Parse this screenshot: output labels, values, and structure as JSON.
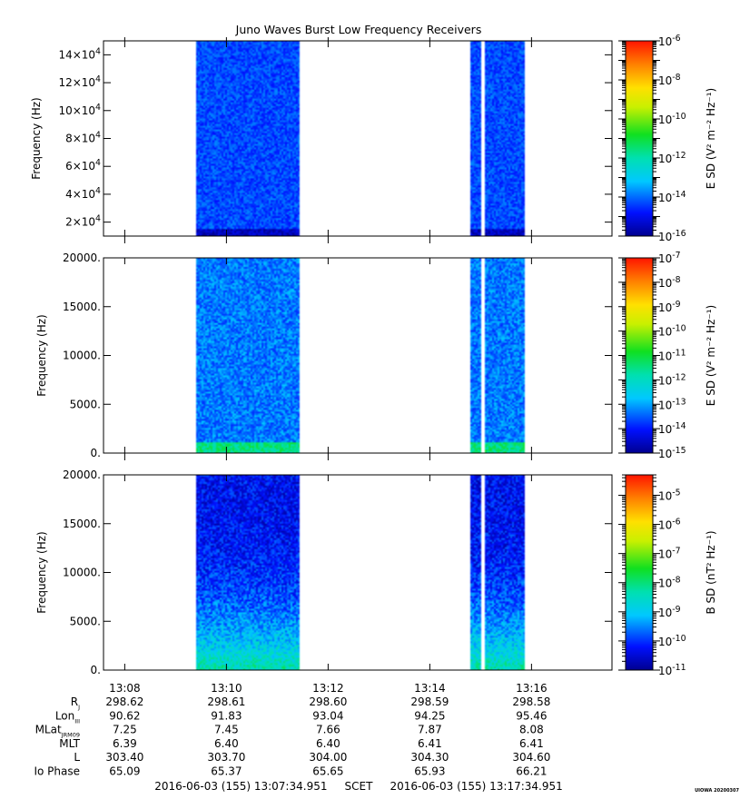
{
  "chart_data": {
    "type": "heatmap",
    "title": "Juno Waves Burst Low Frequency Receivers",
    "x_tick_labels": [
      "13:08",
      "13:10",
      "13:12",
      "13:14",
      "13:16"
    ],
    "time_range": [
      "13:07:34.951",
      "13:17:34.951"
    ],
    "data_intervals": [
      [
        "13:09:24",
        "13:11:27"
      ],
      [
        "13:14:48",
        "13:15:01"
      ],
      [
        "13:15:05",
        "13:15:53"
      ]
    ],
    "panels": [
      {
        "ylabel": "Frequency (Hz)",
        "ylim": [
          10000,
          150000
        ],
        "yticks": [
          20000,
          40000,
          60000,
          80000,
          100000,
          120000,
          140000
        ],
        "ytick_labels": [
          {
            "base": "2×10",
            "exp": "4"
          },
          {
            "base": "4×10",
            "exp": "4"
          },
          {
            "base": "6×10",
            "exp": "4"
          },
          {
            "base": "8×10",
            "exp": "4"
          },
          {
            "base": "10×10",
            "exp": "4"
          },
          {
            "base": "12×10",
            "exp": "4"
          },
          {
            "base": "14×10",
            "exp": "4"
          }
        ],
        "colorbar_label": "E SD (V² m⁻² Hz⁻¹)",
        "colorbar_range_log10": [
          -16,
          -6
        ],
        "colorbar_ticks": [
          {
            "base": "10",
            "exp": "-6"
          },
          {
            "base": "10",
            "exp": "-8"
          },
          {
            "base": "10",
            "exp": "-10"
          },
          {
            "base": "10",
            "exp": "-12"
          },
          {
            "base": "10",
            "exp": "-14"
          },
          {
            "base": "10",
            "exp": "-16"
          }
        ],
        "typical_log10_level": -14.3,
        "low_frequency_log10_level": -15.5
      },
      {
        "ylabel": "Frequency (Hz)",
        "ylim": [
          0,
          20000
        ],
        "yticks": [
          0,
          5000,
          10000,
          15000,
          20000
        ],
        "ytick_labels": [
          "0.",
          "5000.",
          "10000.",
          "15000.",
          "20000."
        ],
        "colorbar_label": "E SD (V² m⁻² Hz⁻¹)",
        "colorbar_range_log10": [
          -15,
          -7
        ],
        "colorbar_ticks": [
          {
            "base": "10",
            "exp": "-7"
          },
          {
            "base": "10",
            "exp": "-8"
          },
          {
            "base": "10",
            "exp": "-9"
          },
          {
            "base": "10",
            "exp": "-10"
          },
          {
            "base": "10",
            "exp": "-11"
          },
          {
            "base": "10",
            "exp": "-12"
          },
          {
            "base": "10",
            "exp": "-13"
          },
          {
            "base": "10",
            "exp": "-14"
          },
          {
            "base": "10",
            "exp": "-15"
          }
        ],
        "typical_log10_level": -13.3,
        "low_frequency_log10_level": -11.5
      },
      {
        "ylabel": "Frequency (Hz)",
        "ylim": [
          0,
          20000
        ],
        "yticks": [
          0,
          5000,
          10000,
          15000,
          20000
        ],
        "ytick_labels": [
          "0.",
          "5000.",
          "10000.",
          "15000.",
          "20000."
        ],
        "colorbar_label": "B SD (nT² Hz⁻¹)",
        "colorbar_range_log10": [
          -11,
          -4.3
        ],
        "colorbar_ticks": [
          {
            "base": "10",
            "exp": "-5"
          },
          {
            "base": "10",
            "exp": "-6"
          },
          {
            "base": "10",
            "exp": "-7"
          },
          {
            "base": "10",
            "exp": "-8"
          },
          {
            "base": "10",
            "exp": "-9"
          },
          {
            "base": "10",
            "exp": "-10"
          },
          {
            "base": "10",
            "exp": "-11"
          }
        ],
        "high_frequency_log10_level": -10.3,
        "low_frequency_log10_level": -8.3
      }
    ],
    "ephemeris": [
      {
        "label": "R",
        "sub": "J",
        "values": [
          "298.62",
          "298.61",
          "298.60",
          "298.59",
          "298.58"
        ]
      },
      {
        "label": "Lon",
        "sub": "III",
        "values": [
          "90.62",
          "91.83",
          "93.04",
          "94.25",
          "95.46"
        ]
      },
      {
        "label": "MLat",
        "sub": "JRM09",
        "values": [
          "7.25",
          "7.45",
          "7.66",
          "7.87",
          "8.08"
        ]
      },
      {
        "label": "MLT",
        "sub": "",
        "values": [
          "6.39",
          "6.40",
          "6.40",
          "6.41",
          "6.41"
        ]
      },
      {
        "label": "L",
        "sub": "",
        "values": [
          "303.40",
          "303.70",
          "304.00",
          "304.30",
          "304.60"
        ]
      },
      {
        "label": "Io Phase",
        "sub": "",
        "values": [
          "65.09",
          "65.37",
          "65.65",
          "65.93",
          "66.21"
        ]
      }
    ],
    "footer": "2016-06-03 (155) 13:07:34.951     SCET     2016-06-03 (155) 13:17:34.951",
    "stamp": "UIOWA 20200307"
  }
}
